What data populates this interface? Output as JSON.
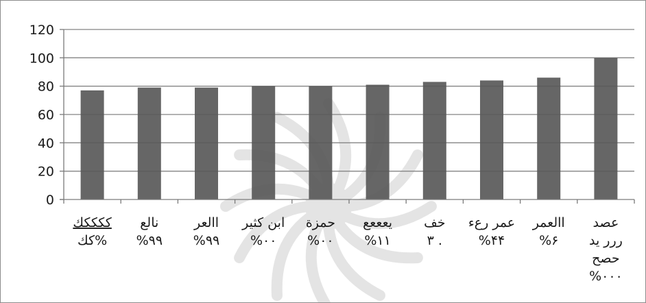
{
  "chart_data": {
    "type": "bar",
    "categories": [
      [
        "ككككك",
        "كك%"
      ],
      [
        "نالع",
        "%۹۹"
      ],
      [
        "االعر",
        "%۹۹"
      ],
      [
        "ابن كثير",
        "%۰۰"
      ],
      [
        "حمزة",
        "%۰۰"
      ],
      [
        "يعععع",
        "%۱۱"
      ],
      [
        "خف",
        "۳ ."
      ],
      [
        "عمر رعء",
        "%۴۴"
      ],
      [
        "االعمر",
        "%۶"
      ],
      [
        "عصد",
        "ررر يد",
        "حصح",
        "%۰۰۰"
      ]
    ],
    "values": [
      77,
      79,
      79,
      80,
      80,
      81,
      83,
      84,
      86,
      100
    ],
    "ylim": [
      0,
      120
    ],
    "yticks": [
      0,
      20,
      40,
      60,
      80,
      100,
      120
    ],
    "grid": true,
    "colors": {
      "bar": "#595959",
      "grid": "#858585",
      "axis": "#7a7a7a",
      "watermark": "#cfcfcf"
    },
    "title": "",
    "xlabel": "",
    "ylabel": ""
  }
}
